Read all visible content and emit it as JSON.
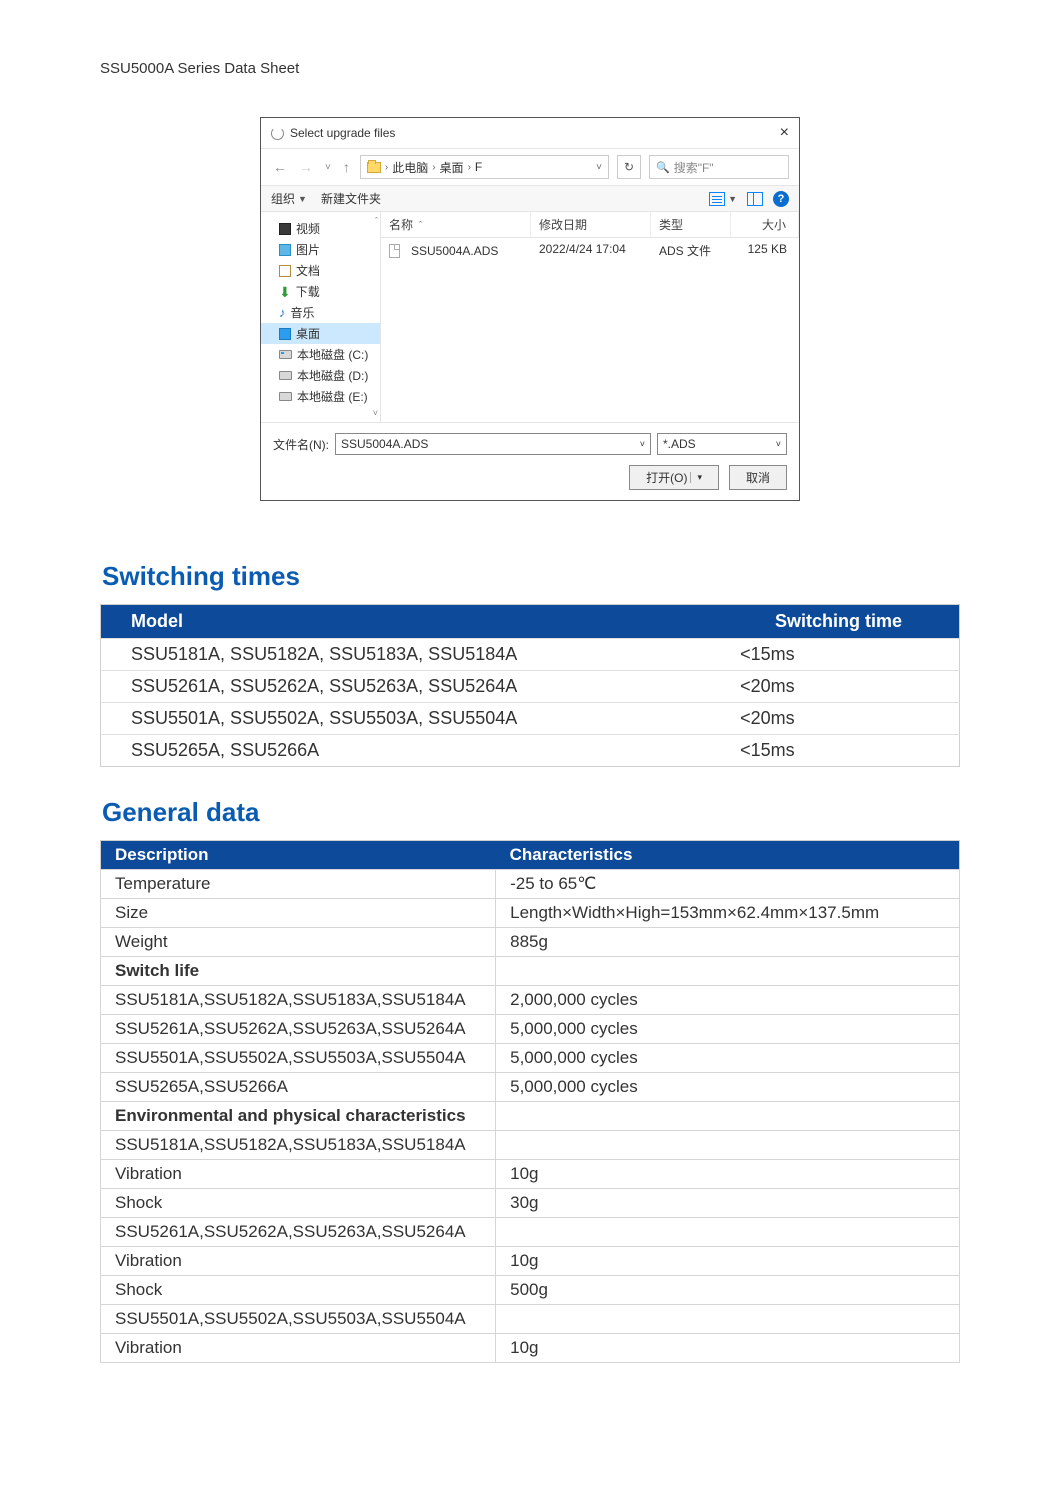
{
  "page_header": "SSU5000A Series Data Sheet",
  "dialog": {
    "title": "Select upgrade files",
    "breadcrumb": [
      "此电脑",
      "桌面",
      "F"
    ],
    "search_placeholder": "搜索\"F\"",
    "toolbar": {
      "organize": "组织",
      "new_folder": "新建文件夹"
    },
    "columns": {
      "name": "名称",
      "date": "修改日期",
      "type": "类型",
      "size": "大小"
    },
    "sidebar": [
      {
        "label": "视频",
        "icon": "video"
      },
      {
        "label": "图片",
        "icon": "pic"
      },
      {
        "label": "文档",
        "icon": "doc"
      },
      {
        "label": "下载",
        "icon": "down"
      },
      {
        "label": "音乐",
        "icon": "music"
      },
      {
        "label": "桌面",
        "icon": "desktop",
        "selected": true
      },
      {
        "label": "本地磁盘 (C:)",
        "icon": "drive-c"
      },
      {
        "label": "本地磁盘 (D:)",
        "icon": "drive"
      },
      {
        "label": "本地磁盘 (E:)",
        "icon": "drive"
      }
    ],
    "file": {
      "name": "SSU5004A.ADS",
      "date": "2022/4/24 17:04",
      "type": "ADS 文件",
      "size": "125 KB"
    },
    "filename_label": "文件名(N):",
    "filename_value": "SSU5004A.ADS",
    "filter": "*.ADS",
    "open_btn": "打开(O)",
    "cancel_btn": "取消"
  },
  "switching_times": {
    "title": "Switching times",
    "headers": [
      "Model",
      "Switching time"
    ],
    "rows": [
      [
        "SSU5181A, SSU5182A, SSU5183A, SSU5184A",
        "<15ms"
      ],
      [
        "SSU5261A, SSU5262A, SSU5263A, SSU5264A",
        "<20ms"
      ],
      [
        "SSU5501A, SSU5502A, SSU5503A, SSU5504A",
        "<20ms"
      ],
      [
        "SSU5265A, SSU5266A",
        "<15ms"
      ]
    ]
  },
  "general_data": {
    "title": "General data",
    "headers": [
      "Description",
      "Characteristics"
    ],
    "rows": [
      {
        "c": [
          "Temperature",
          "-25 to 65℃"
        ]
      },
      {
        "c": [
          "Size",
          "Length×Width×High=153mm×62.4mm×137.5mm"
        ]
      },
      {
        "c": [
          "Weight",
          "885g"
        ]
      },
      {
        "c": [
          "Switch life",
          ""
        ],
        "sub": true
      },
      {
        "c": [
          "SSU5181A,SSU5182A,SSU5183A,SSU5184A",
          "2,000,000 cycles"
        ]
      },
      {
        "c": [
          "SSU5261A,SSU5262A,SSU5263A,SSU5264A",
          "5,000,000 cycles"
        ]
      },
      {
        "c": [
          "SSU5501A,SSU5502A,SSU5503A,SSU5504A",
          "5,000,000 cycles"
        ]
      },
      {
        "c": [
          "SSU5265A,SSU5266A",
          "5,000,000 cycles"
        ]
      },
      {
        "c": [
          "Environmental and physical characteristics",
          ""
        ],
        "sub": true
      },
      {
        "c": [
          "SSU5181A,SSU5182A,SSU5183A,SSU5184A",
          ""
        ]
      },
      {
        "c": [
          "Vibration",
          "10g"
        ]
      },
      {
        "c": [
          "Shock",
          "30g"
        ]
      },
      {
        "c": [
          "SSU5261A,SSU5262A,SSU5263A,SSU5264A",
          ""
        ]
      },
      {
        "c": [
          "Vibration",
          "10g"
        ]
      },
      {
        "c": [
          "Shock",
          "500g"
        ]
      },
      {
        "c": [
          "SSU5501A,SSU5502A,SSU5503A,SSU5504A",
          ""
        ]
      },
      {
        "c": [
          "Vibration",
          "10g"
        ]
      }
    ]
  },
  "colors": {
    "brand_blue": "#0a5cb2",
    "table_header_bg": "#0d4a9a",
    "border_gray": "#cfcfcf"
  }
}
